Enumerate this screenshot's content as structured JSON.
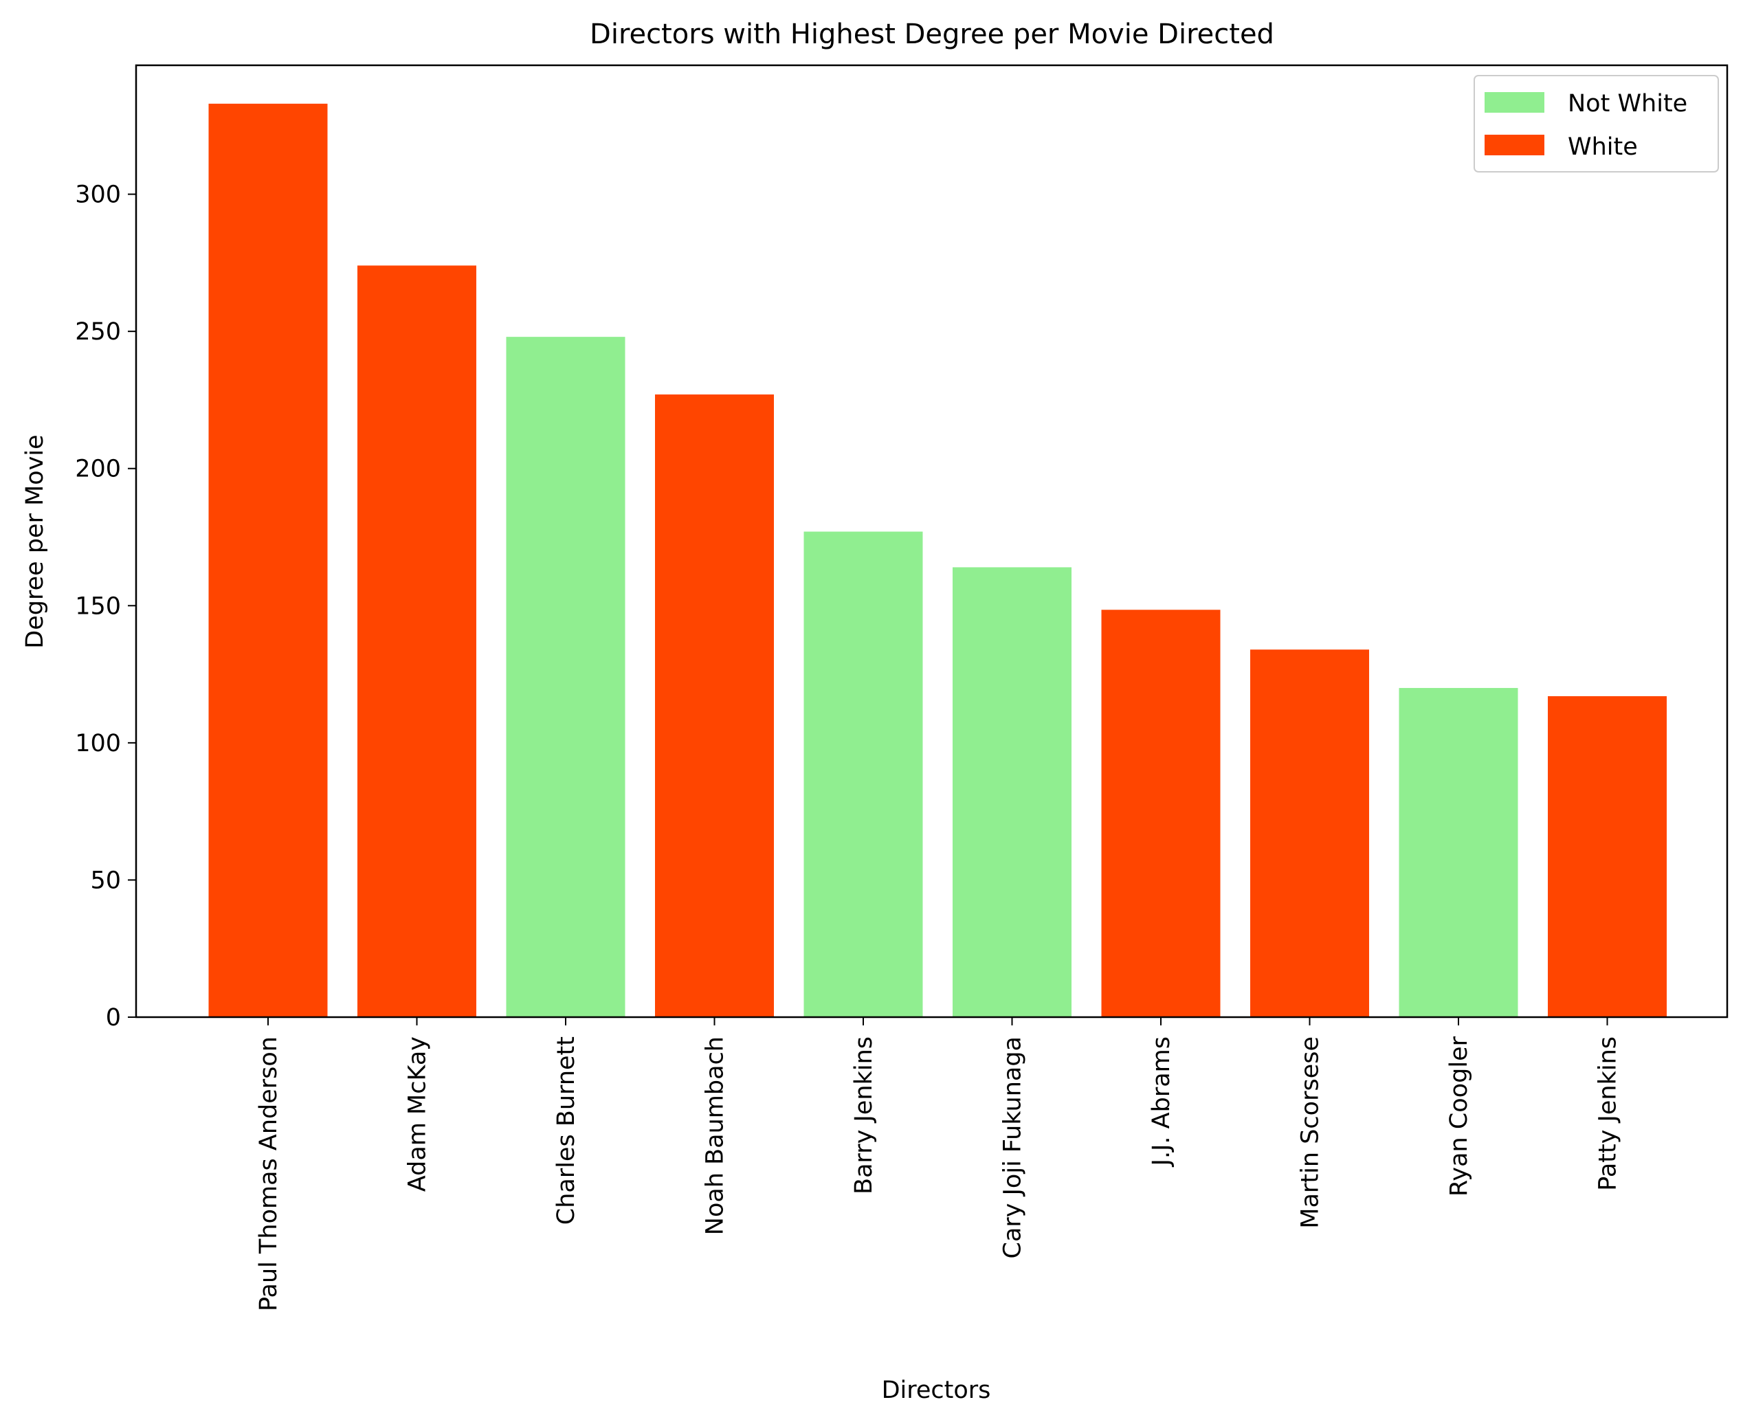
{
  "chart_data": {
    "type": "bar",
    "title": "Directors with Highest Degree per Movie Directed",
    "xlabel": "Directors",
    "ylabel": "Degree per Movie",
    "ylim": [
      0,
      347
    ],
    "yticks": [
      0,
      50,
      100,
      150,
      200,
      250,
      300
    ],
    "grid": false,
    "legend_position": "top-right",
    "categories": [
      "Paul Thomas Anderson",
      "Adam McKay",
      "Charles Burnett",
      "Noah Baumbach",
      "Barry Jenkins",
      "Cary Joji Fukunaga",
      "J.J. Abrams",
      "Martin Scorsese",
      "Ryan Coogler",
      "Patty Jenkins"
    ],
    "values": [
      333,
      274,
      248,
      227,
      177,
      164,
      148.5,
      134,
      120,
      117
    ],
    "groups": [
      "White",
      "White",
      "Not White",
      "White",
      "Not White",
      "Not White",
      "White",
      "White",
      "Not White",
      "White"
    ],
    "legend": [
      {
        "name": "Not White",
        "color": "#90EE90"
      },
      {
        "name": "White",
        "color": "#FF4500"
      }
    ]
  }
}
